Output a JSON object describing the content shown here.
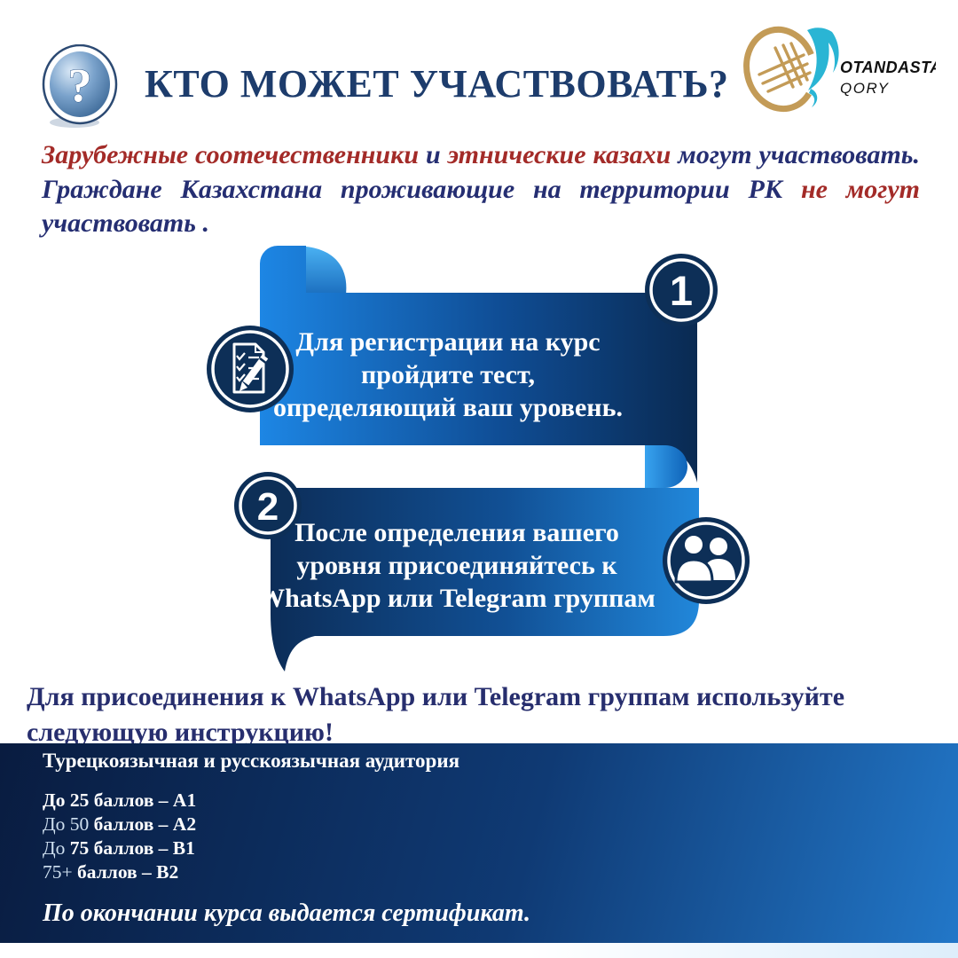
{
  "header": {
    "title": "КТО МОЖЕТ УЧАСТВОВАТЬ?",
    "logo": {
      "name": "OTANDASTAR",
      "sub": "QORY"
    }
  },
  "intro": {
    "segments": [
      {
        "text": "Зарубежные соотечественники ",
        "color": "red"
      },
      {
        "text": "и ",
        "color": "navy"
      },
      {
        "text": "этнические казахи ",
        "color": "red"
      },
      {
        "text": "могут участвовать. Граждане Казахстана проживающие на территории РК ",
        "color": "navy"
      },
      {
        "text": "не могут ",
        "color": "red"
      },
      {
        "text": "участвовать .",
        "color": "navy"
      }
    ]
  },
  "steps": [
    {
      "number": "1",
      "icon": "checklist-pencil-icon",
      "lines": [
        "Для регистрации на курс",
        "пройдите тест,",
        "определяющий ваш уровень."
      ]
    },
    {
      "number": "2",
      "icon": "people-icon",
      "lines": [
        "После определения вашего",
        "уровня присоединяйтесь к",
        "WhatsApp или Telegram группам"
      ]
    }
  ],
  "instruction": "Для присоединения к WhatsApp или Telegram группам используйте следующую инструкцию!",
  "footer": {
    "heading": "Турецкоязычная и русскоязычная аудитория",
    "levels": [
      {
        "parts": [
          {
            "text": "До 25 баллов – A1",
            "bold": true
          }
        ]
      },
      {
        "parts": [
          {
            "text": "До 50",
            "bold": false
          },
          {
            "text": " баллов – A2",
            "bold": true
          }
        ]
      },
      {
        "parts": [
          {
            "text": "До",
            "bold": false
          },
          {
            "text": " 75 баллов – B1",
            "bold": true
          }
        ]
      },
      {
        "parts": [
          {
            "text": "75+",
            "bold": false
          },
          {
            "text": " баллов – B2",
            "bold": true
          }
        ]
      }
    ],
    "note": "По окончании курса выдается сертификат."
  },
  "colors": {
    "accent_red": "#a32b28",
    "accent_navy": "#252e72",
    "title_navy": "#1d3c6c",
    "ribbon_dark": "#0a2a52",
    "ribbon_bright": "#1e88e5",
    "circle_navy": "#0d2f57",
    "footer_dark": "#091c40",
    "footer_bright": "#2277c8",
    "logo_gold": "#c39b57",
    "logo_teal": "#2ab5d4"
  }
}
